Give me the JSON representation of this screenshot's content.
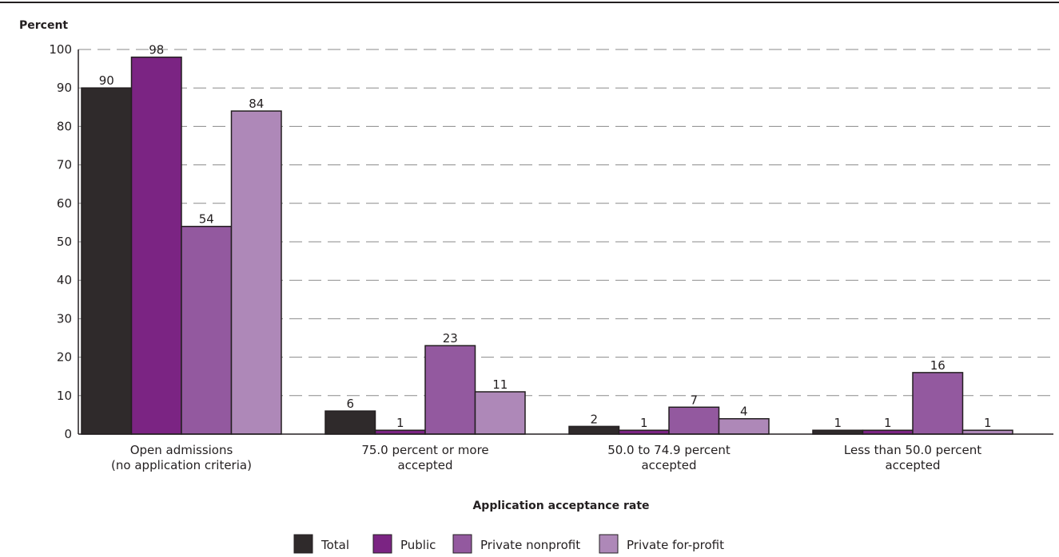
{
  "chart_data": {
    "type": "bar",
    "ylabel": "Percent",
    "xlabel": "Application acceptance rate",
    "ylim": [
      0,
      100
    ],
    "yticks": [
      0,
      10,
      20,
      30,
      40,
      50,
      60,
      70,
      80,
      90,
      100
    ],
    "grid": true,
    "legend_position": "bottom",
    "categories": [
      [
        "Open admissions",
        "(no application criteria)"
      ],
      [
        "75.0 percent or more",
        "accepted"
      ],
      [
        "50.0 to 74.9 percent",
        "accepted"
      ],
      [
        "Less than 50.0 percent",
        "accepted"
      ]
    ],
    "series": [
      {
        "name": "Total",
        "color": "#2f2a2b",
        "values": [
          90,
          6,
          2,
          1
        ]
      },
      {
        "name": "Public",
        "color": "#7b2483",
        "values": [
          98,
          1,
          1,
          1
        ]
      },
      {
        "name": "Private nonprofit",
        "color": "#93599f",
        "values": [
          54,
          23,
          7,
          16
        ]
      },
      {
        "name": "Private for-profit",
        "color": "#ae88b8",
        "values": [
          84,
          11,
          4,
          1
        ]
      }
    ]
  }
}
